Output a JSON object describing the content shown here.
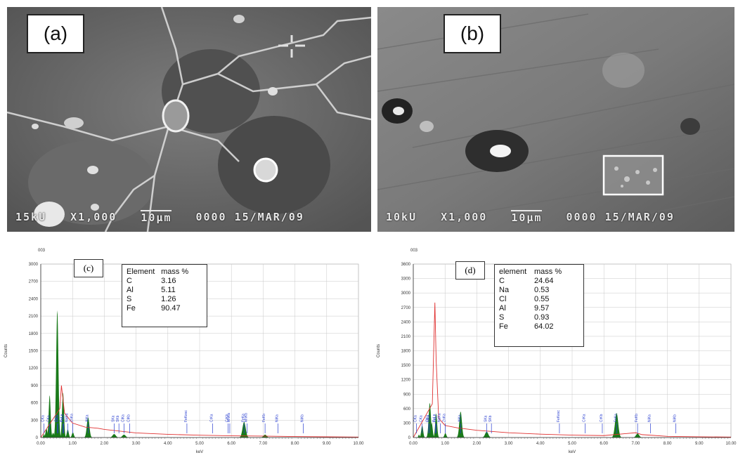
{
  "panels": {
    "a": {
      "label": "(a)",
      "databar": [
        "15kU",
        "X1,000",
        "10μm",
        "0000 15/MAR/09"
      ]
    },
    "b": {
      "label": "(b)",
      "databar": [
        "10kU",
        "X1,000",
        "10μm",
        "0000 15/MAR/09"
      ]
    },
    "c": {
      "label": "(c)"
    },
    "d": {
      "label": "(d)"
    }
  },
  "tables": {
    "c": {
      "header": [
        "Element",
        "mass %"
      ],
      "rows": [
        [
          "C",
          "3.16"
        ],
        [
          "Al",
          "5.11"
        ],
        [
          "S",
          "1.26"
        ],
        [
          "Fe",
          "90.47"
        ]
      ]
    },
    "d": {
      "header": [
        "element",
        "mass %"
      ],
      "rows": [
        [
          "C",
          "24.64"
        ],
        [
          "Na",
          "0.53"
        ],
        [
          "Cl",
          "0.55"
        ],
        [
          "Al",
          "9.57"
        ],
        [
          "S",
          "0.93"
        ],
        [
          "Fe",
          "64.02"
        ]
      ]
    }
  },
  "chart_data": [
    {
      "type": "line",
      "id": "c",
      "corner_label": "003",
      "ylabel": "Counts",
      "xlabel": "keV",
      "xlim": [
        0,
        10
      ],
      "ylim": [
        0,
        3000
      ],
      "yticks": [
        0,
        300,
        600,
        900,
        1200,
        1500,
        1800,
        2100,
        2400,
        2700,
        3000
      ],
      "xticks": [
        "0.00",
        "1.00",
        "2.00",
        "3.00",
        "4.00",
        "5.00",
        "6.00",
        "7.00",
        "8.00",
        "9.00",
        "10.00"
      ],
      "line_color": "#e03030",
      "peak_color": "#1a7a1a",
      "peaks": [
        [
          0.1,
          60,
          0.02
        ],
        [
          0.18,
          150,
          0.03
        ],
        [
          0.28,
          730,
          0.03
        ],
        [
          0.39,
          80,
          0.03
        ],
        [
          0.52,
          2200,
          0.035
        ],
        [
          0.7,
          780,
          0.03
        ],
        [
          0.85,
          140,
          0.03
        ],
        [
          1.01,
          90,
          0.03
        ],
        [
          1.49,
          350,
          0.04
        ],
        [
          2.31,
          60,
          0.05
        ],
        [
          2.62,
          50,
          0.05
        ],
        [
          6.4,
          270,
          0.05
        ],
        [
          7.06,
          50,
          0.05
        ]
      ],
      "background_pts": [
        [
          0,
          0
        ],
        [
          0.6,
          500
        ],
        [
          0.65,
          900
        ],
        [
          0.75,
          420
        ],
        [
          1.0,
          250
        ],
        [
          1.4,
          180
        ],
        [
          1.8,
          160
        ],
        [
          2.0,
          140
        ],
        [
          3.0,
          80
        ],
        [
          4.0,
          55
        ],
        [
          5.0,
          40
        ],
        [
          6.0,
          30
        ],
        [
          7.0,
          25
        ],
        [
          8.0,
          18
        ],
        [
          9.0,
          12
        ],
        [
          10.0,
          8
        ]
      ],
      "line_labels": [
        {
          "x": 0.1,
          "t": "CKa"
        },
        {
          "x": 0.28,
          "t": "CKa"
        },
        {
          "x": 0.52,
          "t": "CKa"
        },
        {
          "x": 0.55,
          "t": "OKa"
        },
        {
          "x": 0.7,
          "t": "FeLa"
        },
        {
          "x": 0.72,
          "t": "FeLl"
        },
        {
          "x": 0.85,
          "t": "NaKa"
        },
        {
          "x": 1.01,
          "t": "ZnKa"
        },
        {
          "x": 1.49,
          "t": "AlKa"
        },
        {
          "x": 2.31,
          "t": "SKa"
        },
        {
          "x": 2.46,
          "t": "SKb"
        },
        {
          "x": 2.62,
          "t": "ClKa"
        },
        {
          "x": 2.8,
          "t": "ClKb"
        },
        {
          "x": 4.6,
          "t": "FeKesc"
        },
        {
          "x": 5.41,
          "t": "CrKa"
        },
        {
          "x": 5.9,
          "t": "CrKb"
        },
        {
          "x": 5.95,
          "t": "MnKa"
        },
        {
          "x": 6.4,
          "t": "FeKa"
        },
        {
          "x": 6.49,
          "t": "MnKb"
        },
        {
          "x": 7.06,
          "t": "FeKb"
        },
        {
          "x": 7.47,
          "t": "NiKa"
        },
        {
          "x": 8.26,
          "t": "NiKb"
        }
      ]
    },
    {
      "type": "line",
      "id": "d",
      "corner_label": "003",
      "ylabel": "Counts",
      "xlabel": "keV",
      "xlim": [
        0,
        10
      ],
      "ylim": [
        0,
        3600
      ],
      "yticks": [
        0,
        300,
        600,
        900,
        1200,
        1500,
        1800,
        2100,
        2400,
        2700,
        3000,
        3300,
        3600
      ],
      "xticks": [
        "0.00",
        "1.00",
        "2.00",
        "3.00",
        "4.00",
        "5.00",
        "6.00",
        "7.00",
        "8.00",
        "9.00",
        "10.00"
      ],
      "line_color": "#e03030",
      "peak_color": "#1a7a1a",
      "peaks": [
        [
          0.18,
          60,
          0.02
        ],
        [
          0.28,
          250,
          0.03
        ],
        [
          0.52,
          720,
          0.035
        ],
        [
          0.58,
          300,
          0.03
        ],
        [
          0.72,
          500,
          0.03
        ],
        [
          1.01,
          90,
          0.03
        ],
        [
          1.49,
          540,
          0.04
        ],
        [
          2.31,
          120,
          0.05
        ],
        [
          6.4,
          510,
          0.05
        ],
        [
          7.06,
          80,
          0.05
        ]
      ],
      "background_pts": [
        [
          0,
          0
        ],
        [
          0.6,
          700
        ],
        [
          0.68,
          2800
        ],
        [
          0.72,
          1600
        ],
        [
          0.8,
          400
        ],
        [
          1.0,
          250
        ],
        [
          1.4,
          200
        ],
        [
          2.0,
          150
        ],
        [
          3.0,
          100
        ],
        [
          4.0,
          70
        ],
        [
          5.0,
          50
        ],
        [
          6.0,
          40
        ],
        [
          7.0,
          100
        ],
        [
          7.2,
          60
        ],
        [
          8.0,
          25
        ],
        [
          9.0,
          15
        ],
        [
          10.0,
          10
        ]
      ],
      "line_labels": [
        {
          "x": 0.1,
          "t": "CKa"
        },
        {
          "x": 0.28,
          "t": "CKa"
        },
        {
          "x": 0.48,
          "t": "OKa"
        },
        {
          "x": 0.52,
          "t": "OKa"
        },
        {
          "x": 0.7,
          "t": "FeLa"
        },
        {
          "x": 0.72,
          "t": "FeLl"
        },
        {
          "x": 0.85,
          "t": "NaKa"
        },
        {
          "x": 1.01,
          "t": "ZnKa"
        },
        {
          "x": 1.49,
          "t": "AlKa"
        },
        {
          "x": 2.31,
          "t": "SKa"
        },
        {
          "x": 2.46,
          "t": "SKb"
        },
        {
          "x": 4.6,
          "t": "FeKesc"
        },
        {
          "x": 5.41,
          "t": "CrKa"
        },
        {
          "x": 5.95,
          "t": "CrKb"
        },
        {
          "x": 6.4,
          "t": "FeKa"
        },
        {
          "x": 7.06,
          "t": "FeKb"
        },
        {
          "x": 7.47,
          "t": "NiKa"
        },
        {
          "x": 8.26,
          "t": "NiKb"
        }
      ]
    }
  ]
}
